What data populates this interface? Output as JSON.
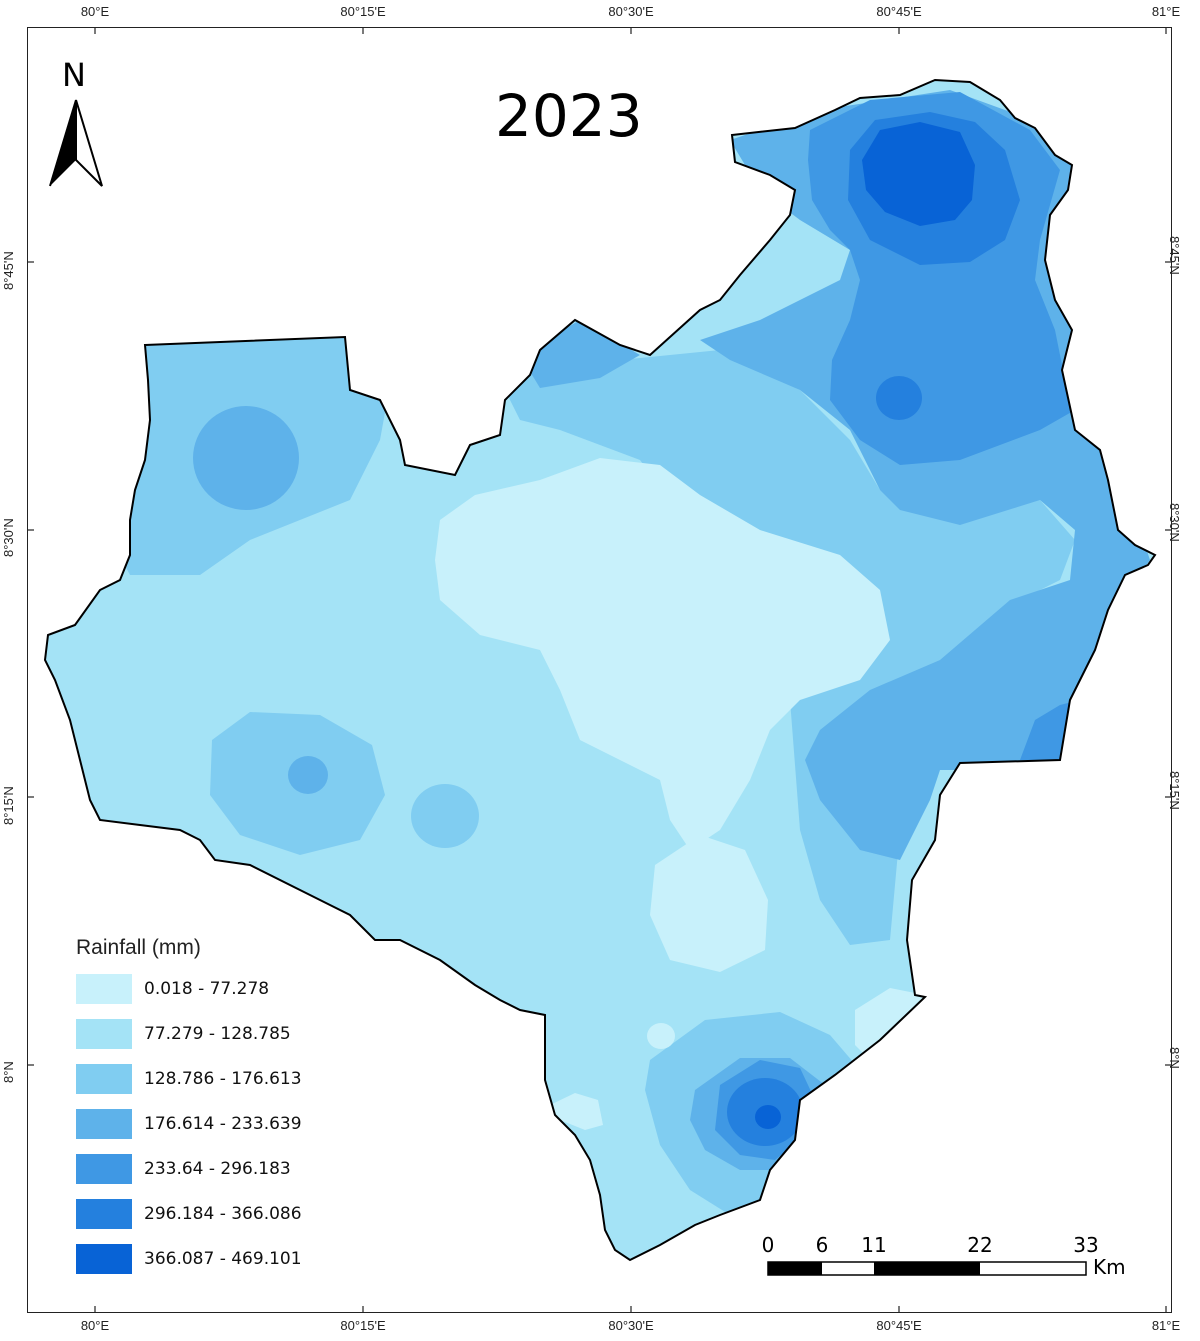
{
  "title": "2023",
  "north_arrow": {
    "label": "N",
    "icon": "north-arrow-icon"
  },
  "graticule": {
    "longitude_ticks": [
      "80°E",
      "80°15'E",
      "80°30'E",
      "80°45'E",
      "81°E"
    ],
    "latitude_ticks": [
      "8°45'N",
      "8°30'N",
      "8°15'N",
      "8°N"
    ]
  },
  "legend": {
    "title": "Rainfall (mm)",
    "classes": [
      {
        "label": "0.018 - 77.278",
        "color": "#c8f1fb"
      },
      {
        "label": "77.279 - 128.785",
        "color": "#a4e3f6"
      },
      {
        "label": "128.786 - 176.613",
        "color": "#80cdf1"
      },
      {
        "label": "176.614 - 233.639",
        "color": "#5eb2ea"
      },
      {
        "label": "233.64 - 296.183",
        "color": "#3f98e4"
      },
      {
        "label": "296.184 - 366.086",
        "color": "#2480de"
      },
      {
        "label": "366.087 - 469.101",
        "color": "#0863d6"
      }
    ]
  },
  "scale_bar": {
    "ticks": [
      "0",
      "6",
      "11",
      "22",
      "33"
    ],
    "unit": "Km"
  }
}
